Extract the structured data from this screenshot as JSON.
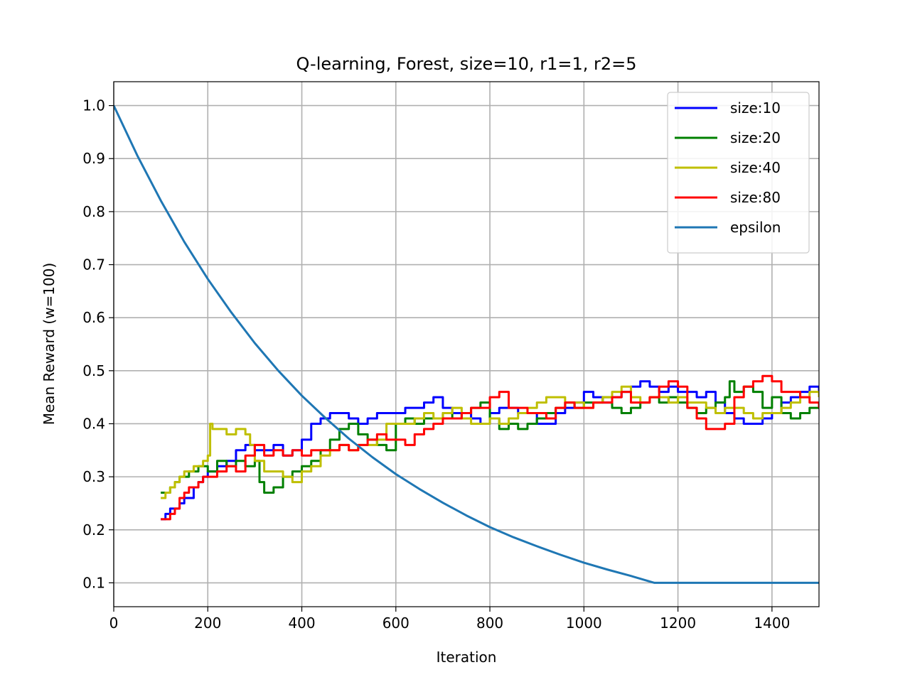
{
  "chart_data": {
    "type": "line",
    "title": "Q-learning, Forest, size=10, r1=1, r2=5",
    "xlabel": "Iteration",
    "ylabel": "Mean Reward (w=100)",
    "xlim": [
      0,
      1500
    ],
    "ylim": [
      0.055,
      1.045
    ],
    "xticks": [
      0,
      200,
      400,
      600,
      800,
      1000,
      1200,
      1400
    ],
    "yticks": [
      0.1,
      0.2,
      0.3,
      0.4,
      0.5,
      0.6,
      0.7,
      0.8,
      0.9,
      1.0
    ],
    "xtick_labels": [
      "0",
      "200",
      "400",
      "600",
      "800",
      "1000",
      "1200",
      "1400"
    ],
    "ytick_labels": [
      "0.1",
      "0.2",
      "0.3",
      "0.4",
      "0.5",
      "0.6",
      "0.7",
      "0.8",
      "0.9",
      "1.0"
    ],
    "grid": true,
    "legend_position": "top-right",
    "series": [
      {
        "name": "size:10",
        "color": "#0000ff",
        "x": [
          100,
          110,
          120,
          130,
          140,
          150,
          160,
          170,
          180,
          190,
          200,
          220,
          240,
          260,
          280,
          300,
          320,
          340,
          360,
          380,
          400,
          420,
          440,
          460,
          480,
          500,
          520,
          540,
          560,
          580,
          600,
          620,
          640,
          660,
          680,
          700,
          720,
          740,
          760,
          780,
          800,
          820,
          840,
          860,
          880,
          900,
          920,
          940,
          960,
          980,
          1000,
          1020,
          1040,
          1060,
          1080,
          1100,
          1120,
          1140,
          1160,
          1180,
          1200,
          1220,
          1240,
          1260,
          1280,
          1300,
          1320,
          1340,
          1360,
          1380,
          1400,
          1420,
          1440,
          1460,
          1480,
          1500
        ],
        "y": [
          0.22,
          0.23,
          0.24,
          0.24,
          0.25,
          0.26,
          0.26,
          0.28,
          0.29,
          0.3,
          0.31,
          0.32,
          0.33,
          0.35,
          0.36,
          0.35,
          0.35,
          0.36,
          0.34,
          0.35,
          0.37,
          0.4,
          0.41,
          0.42,
          0.42,
          0.41,
          0.4,
          0.41,
          0.42,
          0.42,
          0.42,
          0.43,
          0.43,
          0.44,
          0.45,
          0.43,
          0.42,
          0.42,
          0.41,
          0.4,
          0.42,
          0.43,
          0.43,
          0.42,
          0.42,
          0.4,
          0.4,
          0.42,
          0.43,
          0.44,
          0.46,
          0.45,
          0.44,
          0.45,
          0.46,
          0.47,
          0.48,
          0.47,
          0.46,
          0.47,
          0.46,
          0.46,
          0.45,
          0.46,
          0.44,
          0.42,
          0.41,
          0.4,
          0.4,
          0.41,
          0.42,
          0.44,
          0.45,
          0.46,
          0.47,
          0.46
        ]
      },
      {
        "name": "size:20",
        "color": "#008000",
        "x": [
          100,
          110,
          120,
          130,
          140,
          150,
          160,
          170,
          180,
          190,
          200,
          220,
          240,
          260,
          280,
          300,
          310,
          320,
          330,
          340,
          360,
          380,
          400,
          420,
          440,
          460,
          480,
          500,
          520,
          540,
          560,
          580,
          600,
          620,
          640,
          660,
          680,
          700,
          720,
          740,
          760,
          780,
          800,
          820,
          840,
          860,
          880,
          900,
          920,
          940,
          960,
          980,
          1000,
          1020,
          1040,
          1060,
          1080,
          1100,
          1120,
          1140,
          1160,
          1180,
          1200,
          1220,
          1240,
          1260,
          1280,
          1300,
          1310,
          1320,
          1340,
          1360,
          1380,
          1400,
          1420,
          1440,
          1460,
          1480,
          1500
        ],
        "y": [
          0.27,
          0.27,
          0.28,
          0.29,
          0.3,
          0.3,
          0.31,
          0.31,
          0.32,
          0.32,
          0.31,
          0.33,
          0.32,
          0.33,
          0.32,
          0.33,
          0.29,
          0.27,
          0.27,
          0.28,
          0.3,
          0.31,
          0.32,
          0.33,
          0.35,
          0.37,
          0.39,
          0.4,
          0.38,
          0.37,
          0.36,
          0.35,
          0.4,
          0.41,
          0.4,
          0.41,
          0.41,
          0.42,
          0.41,
          0.42,
          0.43,
          0.44,
          0.41,
          0.39,
          0.4,
          0.39,
          0.4,
          0.41,
          0.42,
          0.43,
          0.44,
          0.43,
          0.44,
          0.44,
          0.45,
          0.43,
          0.42,
          0.43,
          0.44,
          0.45,
          0.44,
          0.45,
          0.44,
          0.43,
          0.42,
          0.43,
          0.44,
          0.45,
          0.48,
          0.46,
          0.47,
          0.46,
          0.43,
          0.45,
          0.42,
          0.41,
          0.42,
          0.43,
          0.43
        ]
      },
      {
        "name": "size:40",
        "color": "#bfbf00",
        "x": [
          100,
          110,
          120,
          130,
          140,
          150,
          160,
          170,
          180,
          190,
          200,
          205,
          210,
          220,
          240,
          260,
          280,
          290,
          300,
          320,
          340,
          360,
          380,
          400,
          420,
          440,
          460,
          480,
          500,
          520,
          540,
          560,
          580,
          600,
          620,
          640,
          660,
          680,
          700,
          720,
          740,
          760,
          780,
          800,
          820,
          840,
          860,
          880,
          900,
          920,
          940,
          960,
          980,
          1000,
          1020,
          1040,
          1060,
          1080,
          1100,
          1120,
          1140,
          1160,
          1180,
          1200,
          1220,
          1240,
          1260,
          1280,
          1300,
          1320,
          1340,
          1360,
          1380,
          1400,
          1420,
          1440,
          1460,
          1480,
          1500
        ],
        "y": [
          0.26,
          0.27,
          0.28,
          0.29,
          0.3,
          0.31,
          0.31,
          0.32,
          0.32,
          0.33,
          0.34,
          0.4,
          0.39,
          0.39,
          0.38,
          0.39,
          0.38,
          0.36,
          0.33,
          0.31,
          0.31,
          0.3,
          0.29,
          0.31,
          0.32,
          0.34,
          0.35,
          0.36,
          0.35,
          0.36,
          0.36,
          0.37,
          0.4,
          0.4,
          0.4,
          0.41,
          0.42,
          0.41,
          0.42,
          0.43,
          0.41,
          0.4,
          0.4,
          0.41,
          0.4,
          0.41,
          0.42,
          0.43,
          0.44,
          0.45,
          0.45,
          0.44,
          0.44,
          0.43,
          0.44,
          0.45,
          0.46,
          0.47,
          0.45,
          0.44,
          0.45,
          0.45,
          0.44,
          0.45,
          0.44,
          0.44,
          0.43,
          0.42,
          0.43,
          0.43,
          0.42,
          0.41,
          0.42,
          0.42,
          0.43,
          0.44,
          0.45,
          0.46,
          0.45
        ]
      },
      {
        "name": "size:80",
        "color": "#ff0000",
        "x": [
          100,
          110,
          120,
          130,
          140,
          150,
          160,
          170,
          180,
          190,
          200,
          220,
          240,
          260,
          280,
          300,
          320,
          340,
          360,
          380,
          400,
          420,
          440,
          460,
          480,
          500,
          520,
          540,
          560,
          580,
          600,
          620,
          640,
          660,
          680,
          700,
          720,
          740,
          760,
          780,
          800,
          820,
          840,
          860,
          880,
          900,
          920,
          940,
          960,
          980,
          1000,
          1020,
          1040,
          1060,
          1080,
          1100,
          1120,
          1140,
          1160,
          1180,
          1200,
          1220,
          1240,
          1260,
          1280,
          1300,
          1320,
          1340,
          1360,
          1380,
          1400,
          1420,
          1440,
          1460,
          1480,
          1500
        ],
        "y": [
          0.22,
          0.22,
          0.23,
          0.24,
          0.26,
          0.27,
          0.28,
          0.28,
          0.29,
          0.3,
          0.3,
          0.31,
          0.32,
          0.31,
          0.34,
          0.36,
          0.34,
          0.35,
          0.34,
          0.35,
          0.34,
          0.35,
          0.35,
          0.35,
          0.36,
          0.35,
          0.36,
          0.37,
          0.38,
          0.37,
          0.37,
          0.36,
          0.38,
          0.39,
          0.4,
          0.41,
          0.41,
          0.42,
          0.43,
          0.43,
          0.45,
          0.46,
          0.43,
          0.43,
          0.42,
          0.42,
          0.41,
          0.43,
          0.44,
          0.43,
          0.43,
          0.44,
          0.44,
          0.45,
          0.46,
          0.44,
          0.44,
          0.45,
          0.47,
          0.48,
          0.47,
          0.43,
          0.41,
          0.39,
          0.39,
          0.4,
          0.45,
          0.47,
          0.48,
          0.49,
          0.48,
          0.46,
          0.46,
          0.45,
          0.44,
          0.43
        ]
      },
      {
        "name": "epsilon",
        "color": "#1f77b4",
        "x": [
          0,
          50,
          100,
          150,
          200,
          250,
          300,
          350,
          400,
          450,
          500,
          550,
          600,
          650,
          700,
          750,
          800,
          850,
          900,
          950,
          1000,
          1050,
          1100,
          1150,
          1200,
          1250,
          1300,
          1350,
          1400,
          1450,
          1500
        ],
        "y": [
          1.0,
          0.906,
          0.821,
          0.743,
          0.673,
          0.61,
          0.552,
          0.5,
          0.453,
          0.411,
          0.372,
          0.337,
          0.305,
          0.277,
          0.251,
          0.227,
          0.205,
          0.186,
          0.169,
          0.153,
          0.138,
          0.125,
          0.113,
          0.1,
          0.1,
          0.1,
          0.1,
          0.1,
          0.1,
          0.1,
          0.1
        ]
      }
    ]
  }
}
